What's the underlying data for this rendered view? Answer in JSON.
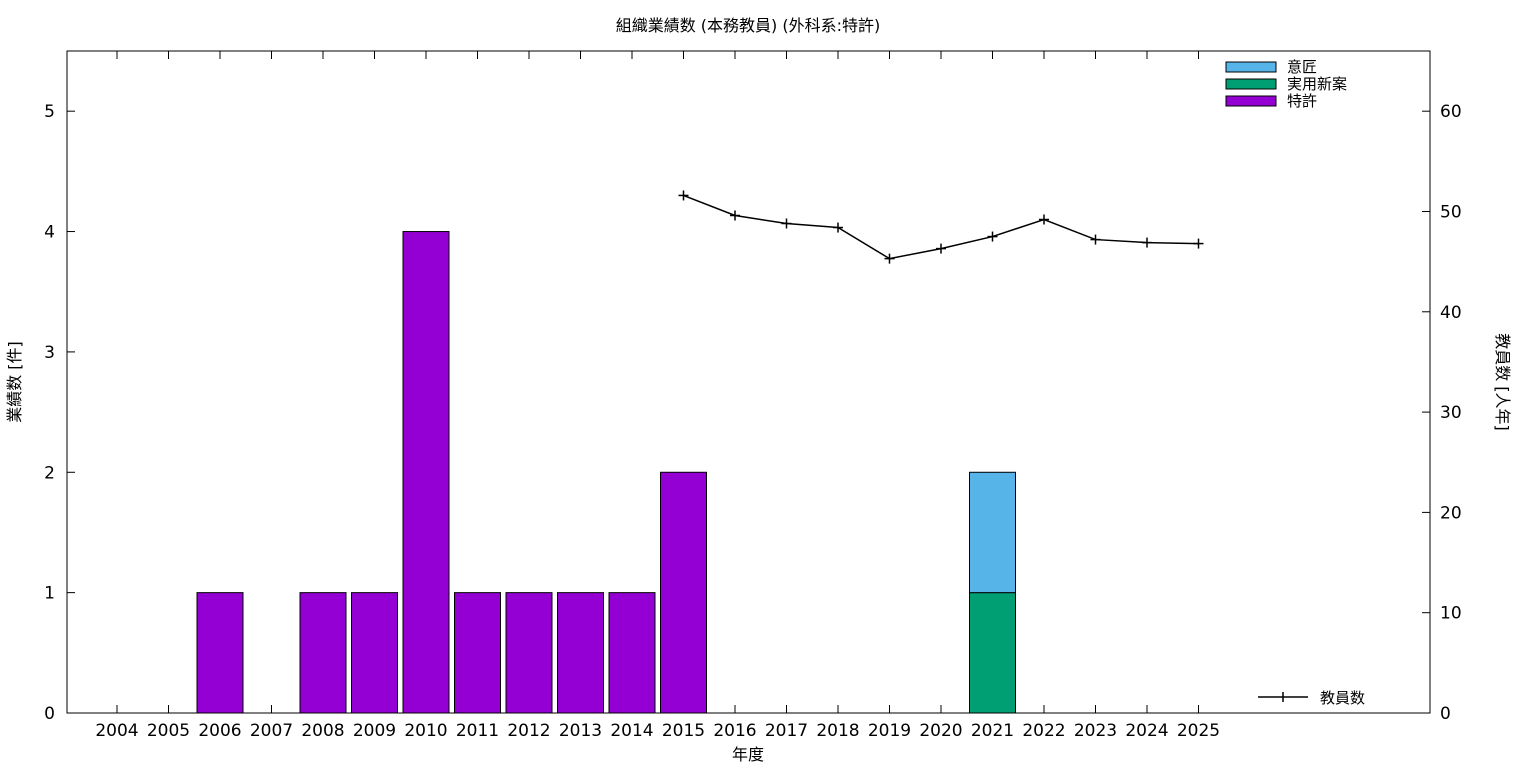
{
  "chart_data": {
    "type": "bar",
    "title": "組織業績数 (本務教員) (外科系:特許)",
    "xlabel": "年度",
    "ylabel": "業績数 [件]",
    "y2label": "教員数 [人年]",
    "categories": [
      "2004",
      "2005",
      "2006",
      "2007",
      "2008",
      "2009",
      "2010",
      "2011",
      "2012",
      "2013",
      "2014",
      "2015",
      "2016",
      "2017",
      "2018",
      "2019",
      "2020",
      "2021",
      "2022",
      "2023",
      "2024",
      "2025"
    ],
    "stacked": true,
    "ylim": [
      0,
      5.5
    ],
    "yticks": [
      0,
      1,
      2,
      3,
      4,
      5
    ],
    "y2lim": [
      0,
      66
    ],
    "y2ticks": [
      0,
      10,
      20,
      30,
      40,
      50,
      60
    ],
    "series": [
      {
        "name": "特許",
        "color": "#9400d3",
        "values": [
          0,
          0,
          1,
          0,
          1,
          1,
          4,
          1,
          1,
          1,
          1,
          2,
          0,
          0,
          0,
          0,
          0,
          0,
          0,
          0,
          0,
          0
        ]
      },
      {
        "name": "実用新案",
        "color": "#009e73",
        "values": [
          0,
          0,
          0,
          0,
          0,
          0,
          0,
          0,
          0,
          0,
          0,
          0,
          0,
          0,
          0,
          0,
          0,
          1,
          0,
          0,
          0,
          0
        ]
      },
      {
        "name": "意匠",
        "color": "#56b4e9",
        "values": [
          0,
          0,
          0,
          0,
          0,
          0,
          0,
          0,
          0,
          0,
          0,
          0,
          0,
          0,
          0,
          0,
          0,
          1,
          0,
          0,
          0,
          0
        ]
      }
    ],
    "line_series": {
      "name": "教員数",
      "color": "#000000",
      "axis": "y2",
      "x": [
        "2015",
        "2016",
        "2017",
        "2018",
        "2019",
        "2020",
        "2021",
        "2022",
        "2023",
        "2024",
        "2025"
      ],
      "values": [
        51.6,
        49.6,
        48.8,
        48.4,
        45.3,
        46.3,
        47.5,
        49.2,
        47.2,
        46.9,
        46.8
      ]
    },
    "legend_top_order": [
      "意匠",
      "実用新案",
      "特許"
    ],
    "legend_bars_position": "top-right",
    "legend_line_position": "bottom-right",
    "grid": false
  }
}
